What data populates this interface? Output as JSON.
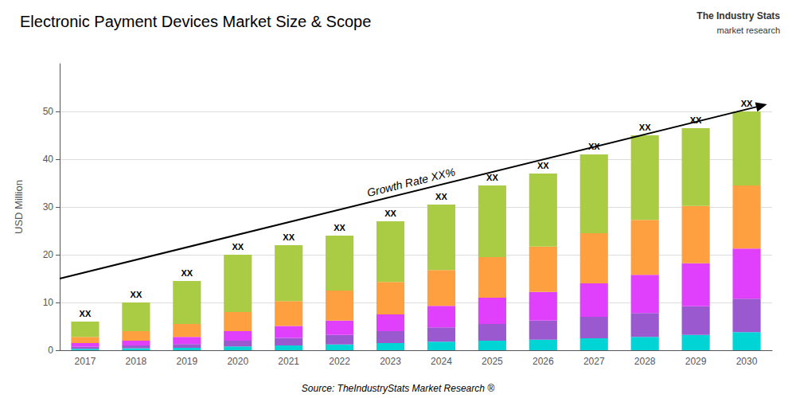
{
  "chart_data": {
    "type": "bar",
    "stacked": true,
    "title": "Electronic Payment Devices Market Size & Scope",
    "ylabel": "USD Million",
    "source": "Source: TheIndustryStats Market Research ®",
    "logo": [
      "The Industry Stats",
      "market research"
    ],
    "categories": [
      "2017",
      "2018",
      "2019",
      "2020",
      "2021",
      "2022",
      "2023",
      "2024",
      "2025",
      "2026",
      "2027",
      "2028",
      "2029",
      "2030"
    ],
    "series": [
      {
        "color": "#00D4D4",
        "values": [
          0.3,
          0.4,
          0.5,
          0.8,
          1.0,
          1.2,
          1.5,
          1.8,
          2.0,
          2.2,
          2.5,
          2.8,
          3.2,
          3.8
        ]
      },
      {
        "color": "#9B59D0",
        "values": [
          0.4,
          0.6,
          0.8,
          1.2,
          1.6,
          2.0,
          2.5,
          3.0,
          3.5,
          4.0,
          4.5,
          5.0,
          6.0,
          7.0
        ]
      },
      {
        "color": "#E040FB",
        "values": [
          0.8,
          1.0,
          1.5,
          2.0,
          2.5,
          3.0,
          3.5,
          4.5,
          5.5,
          6.0,
          7.0,
          8.0,
          9.0,
          10.5
        ]
      },
      {
        "color": "#FFA040",
        "values": [
          1.3,
          2.0,
          2.7,
          4.0,
          5.2,
          6.3,
          6.8,
          7.5,
          8.5,
          9.5,
          10.5,
          11.5,
          12.0,
          13.2
        ]
      },
      {
        "color": "#AACC44",
        "values": [
          3.2,
          6.0,
          9.0,
          12.0,
          11.7,
          11.5,
          12.7,
          13.7,
          15.0,
          15.3,
          16.5,
          17.7,
          16.3,
          15.5
        ]
      }
    ],
    "total_labels": [
      "XX",
      "XX",
      "XX",
      "XX",
      "XX",
      "XX",
      "XX",
      "XX",
      "XX",
      "XX",
      "XX",
      "XX",
      "XX",
      "XX"
    ],
    "arrow": {
      "start": [
        -0.5,
        15.0
      ],
      "end": [
        13.4,
        51.5
      ]
    },
    "annotation": "Growth Rate XX%",
    "ylim": [
      0,
      60
    ],
    "yticks": [
      0,
      10,
      20,
      30,
      40,
      50
    ],
    "grid": true
  }
}
